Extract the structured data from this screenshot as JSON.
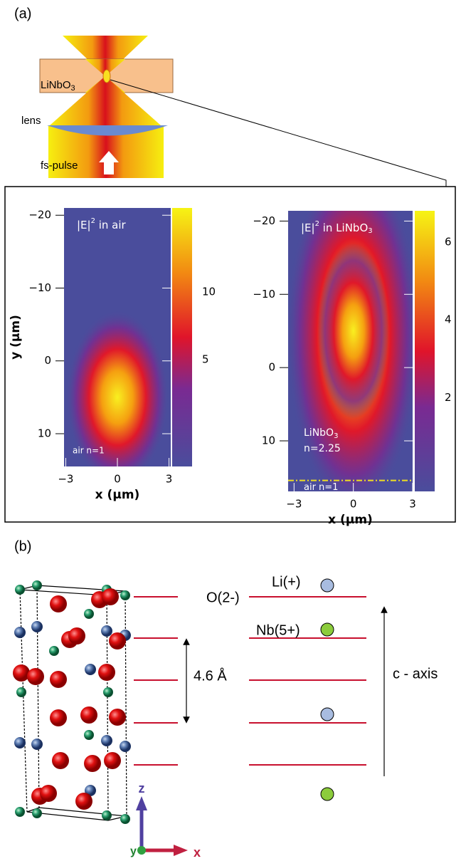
{
  "panel_a": {
    "label": "(a)",
    "schematic": {
      "crystal": {
        "main": "LiNbO",
        "sub": "3"
      },
      "lens": "lens",
      "pulse": "fs-pulse"
    },
    "plots": [
      {
        "title": {
          "main": "|E|",
          "sup": "2",
          "rest": " in air"
        },
        "medium_label": "air n=1",
        "x_label": "x (μm)",
        "y_label": "y (μm)",
        "xlim": [
          -3.1,
          3.1
        ],
        "ylim": [
          -21,
          14.5
        ],
        "clim": [
          -2.9,
          16.2
        ],
        "xticks": [
          {
            "value": -3,
            "label": "−3"
          },
          0,
          3
        ],
        "yticks": [
          {
            "value": -20,
            "label": "−20"
          },
          {
            "value": -10,
            "label": "−10"
          },
          0,
          10
        ],
        "colorbar_ticks": [
          10,
          5
        ]
      },
      {
        "title": {
          "main": "|E|",
          "sup": "2",
          "rest": " in LiNbO",
          "sub": "3"
        },
        "medium_label": {
          "main": "LiNbO",
          "sub": "3",
          "line2": "n=2.25"
        },
        "interface_label": "air n=1",
        "interface_y": 15.4,
        "x_label": "x (μm)",
        "xlim": [
          -3.3,
          3.0
        ],
        "ylim": [
          -21.4,
          16.9
        ],
        "clim": [
          -0.4,
          6.8
        ],
        "xticks": [
          {
            "value": -3,
            "label": "−3"
          },
          0,
          3
        ],
        "yticks": [
          {
            "value": -20,
            "label": "−20"
          },
          {
            "value": -10,
            "label": "−10"
          },
          0,
          10
        ],
        "colorbar_ticks": [
          6,
          4,
          2
        ]
      }
    ]
  },
  "panel_b": {
    "label": "(b)",
    "oxygen": "O(2-)",
    "lithium": "Li(+)",
    "niobium": "Nb(5+)",
    "spacing": "4.6 Å",
    "axis": "c - axis",
    "axes": {
      "z": "z",
      "y": "y",
      "x": "x"
    }
  }
}
